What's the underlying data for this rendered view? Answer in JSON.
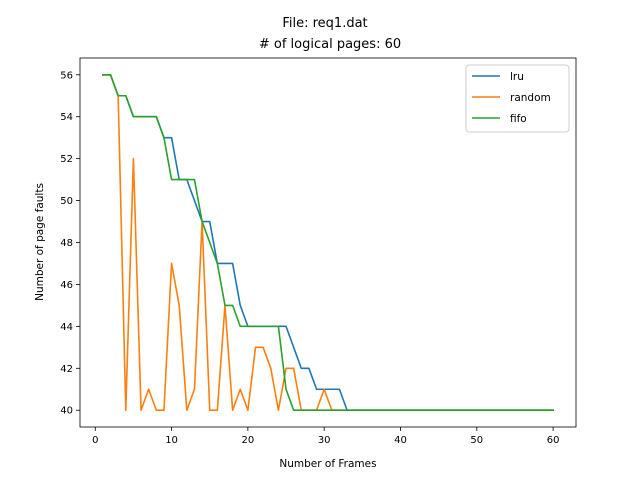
{
  "chart_data": {
    "type": "line",
    "title_line1": "File: req1.dat",
    "title_line2": "# of logical pages: 60",
    "xlabel": "Number of Frames",
    "ylabel": "Number of page faults",
    "xlim": [
      -2,
      63
    ],
    "ylim": [
      39.2,
      56.8
    ],
    "xticks": [
      0,
      10,
      20,
      30,
      40,
      50,
      60
    ],
    "yticks": [
      40,
      42,
      44,
      46,
      48,
      50,
      52,
      54,
      56
    ],
    "grid": false,
    "legend_position": "top-right",
    "x": [
      1,
      2,
      3,
      4,
      5,
      6,
      7,
      8,
      9,
      10,
      11,
      12,
      13,
      14,
      15,
      16,
      17,
      18,
      19,
      20,
      21,
      22,
      23,
      24,
      25,
      26,
      27,
      28,
      29,
      30,
      31,
      32,
      33,
      34,
      35,
      36,
      37,
      38,
      39,
      40,
      41,
      42,
      43,
      44,
      45,
      46,
      47,
      48,
      49,
      50,
      51,
      52,
      53,
      54,
      55,
      56,
      57,
      58,
      59,
      60
    ],
    "series": [
      {
        "name": "lru",
        "color": "#1f77b4",
        "values": [
          56,
          56,
          55,
          55,
          54,
          54,
          54,
          54,
          53,
          53,
          51,
          51,
          50,
          49,
          49,
          47,
          47,
          47,
          45,
          44,
          44,
          44,
          44,
          44,
          44,
          43,
          42,
          42,
          41,
          41,
          41,
          41,
          40,
          40,
          40,
          40,
          40,
          40,
          40,
          40,
          40,
          40,
          40,
          40,
          40,
          40,
          40,
          40,
          40,
          40,
          40,
          40,
          40,
          40,
          40,
          40,
          40,
          40,
          40,
          40
        ]
      },
      {
        "name": "random",
        "color": "#ff7f0e",
        "values": [
          56,
          56,
          55,
          40,
          52,
          40,
          41,
          40,
          40,
          47,
          45,
          40,
          41,
          49,
          40,
          40,
          45,
          40,
          41,
          40,
          43,
          43,
          42,
          40,
          42,
          42,
          40,
          40,
          40,
          41,
          40,
          40,
          40,
          40,
          40,
          40,
          40,
          40,
          40,
          40,
          40,
          40,
          40,
          40,
          40,
          40,
          40,
          40,
          40,
          40,
          40,
          40,
          40,
          40,
          40,
          40,
          40,
          40,
          40,
          40
        ]
      },
      {
        "name": "fifo",
        "color": "#2ca02c",
        "values": [
          56,
          56,
          55,
          55,
          54,
          54,
          54,
          54,
          53,
          51,
          51,
          51,
          51,
          49,
          48,
          47,
          45,
          45,
          44,
          44,
          44,
          44,
          44,
          44,
          41,
          40,
          40,
          40,
          40,
          40,
          40,
          40,
          40,
          40,
          40,
          40,
          40,
          40,
          40,
          40,
          40,
          40,
          40,
          40,
          40,
          40,
          40,
          40,
          40,
          40,
          40,
          40,
          40,
          40,
          40,
          40,
          40,
          40,
          40,
          40
        ]
      }
    ]
  }
}
